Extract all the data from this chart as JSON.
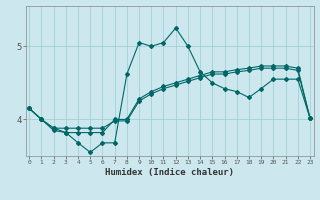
{
  "xlabel": "Humidex (Indice chaleur)",
  "bg_color": "#cce8ee",
  "grid_color": "#99cccc",
  "line_color": "#006666",
  "x_ticks": [
    0,
    1,
    2,
    3,
    4,
    5,
    6,
    7,
    8,
    9,
    10,
    11,
    12,
    13,
    14,
    15,
    16,
    17,
    18,
    19,
    20,
    21,
    22,
    23
  ],
  "y_ticks": [
    4,
    5
  ],
  "ylim": [
    3.5,
    5.55
  ],
  "xlim": [
    -0.3,
    23.3
  ],
  "series1_x": [
    0,
    1,
    2,
    3,
    4,
    5,
    6,
    7,
    8,
    9,
    10,
    11,
    12,
    13,
    14,
    15,
    16,
    17,
    18,
    19,
    20,
    21,
    22,
    23
  ],
  "series1_y": [
    4.15,
    4.0,
    3.85,
    3.82,
    3.82,
    3.82,
    3.82,
    4.0,
    4.0,
    4.28,
    4.38,
    4.45,
    4.5,
    4.55,
    4.6,
    4.65,
    4.65,
    4.68,
    4.7,
    4.73,
    4.73,
    4.73,
    4.7,
    4.02
  ],
  "series2_x": [
    0,
    1,
    2,
    3,
    4,
    5,
    6,
    7,
    8,
    9,
    10,
    11,
    12,
    13,
    14,
    15,
    16,
    17,
    18,
    19,
    20,
    21,
    22,
    23
  ],
  "series2_y": [
    4.15,
    4.0,
    3.88,
    3.88,
    3.88,
    3.88,
    3.88,
    3.98,
    3.98,
    4.25,
    4.35,
    4.42,
    4.47,
    4.52,
    4.57,
    4.62,
    4.62,
    4.65,
    4.67,
    4.7,
    4.7,
    4.7,
    4.67,
    4.02
  ],
  "series3_x": [
    0,
    1,
    2,
    3,
    4,
    5,
    6,
    7,
    8,
    9,
    10,
    11,
    12,
    13,
    14,
    15,
    16,
    17,
    18,
    19,
    20,
    21,
    22,
    23
  ],
  "series3_y": [
    4.15,
    4.0,
    3.88,
    3.82,
    3.68,
    3.55,
    3.68,
    3.68,
    4.62,
    5.05,
    5.0,
    5.05,
    5.25,
    5.0,
    4.65,
    4.5,
    4.42,
    4.38,
    4.3,
    4.42,
    4.55,
    4.55,
    4.55,
    4.02
  ]
}
